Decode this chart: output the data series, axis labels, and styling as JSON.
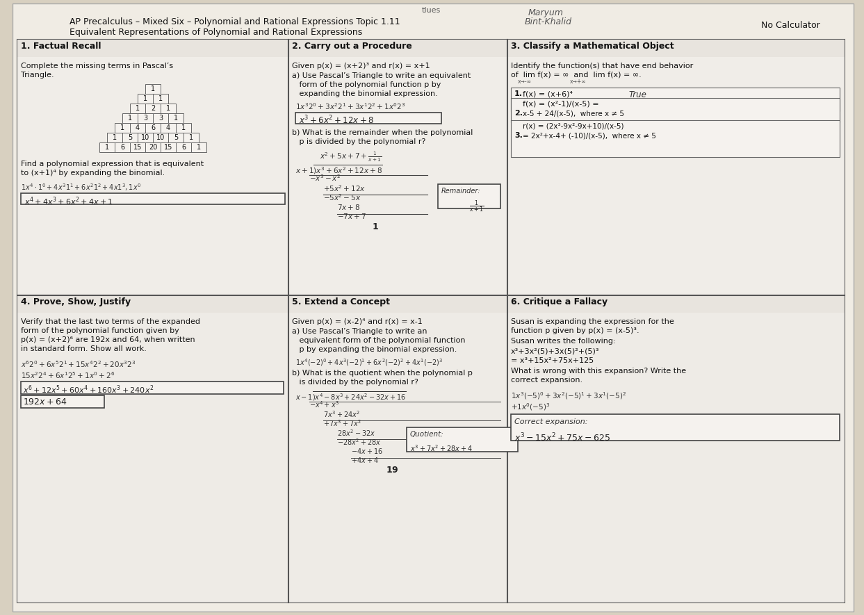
{
  "title_line1": "AP Precalculus – Mixed Six – Polynomial and Rational Expressions Topic 1.11",
  "title_line2": "Equivalent Representations of Polynomial and Rational Expressions",
  "subtitle_center": "tlues",
  "subtitle_right": "No Calculator",
  "bg_color": "#d8d0c0",
  "paper_color": "#f0ece4",
  "cell_bg": "#f5f2ee",
  "border_color": "#555555",
  "text_color": "#111111",
  "handwriting_color": "#333333",
  "col_headers": [
    "1. Factual Recall",
    "2. Carry out a Procedure",
    "3. Classify a Mathematical Object"
  ],
  "row2_headers": [
    "4. Prove, Show, Justify",
    "5. Extend a Concept",
    "6. Critique a Fallacy"
  ]
}
